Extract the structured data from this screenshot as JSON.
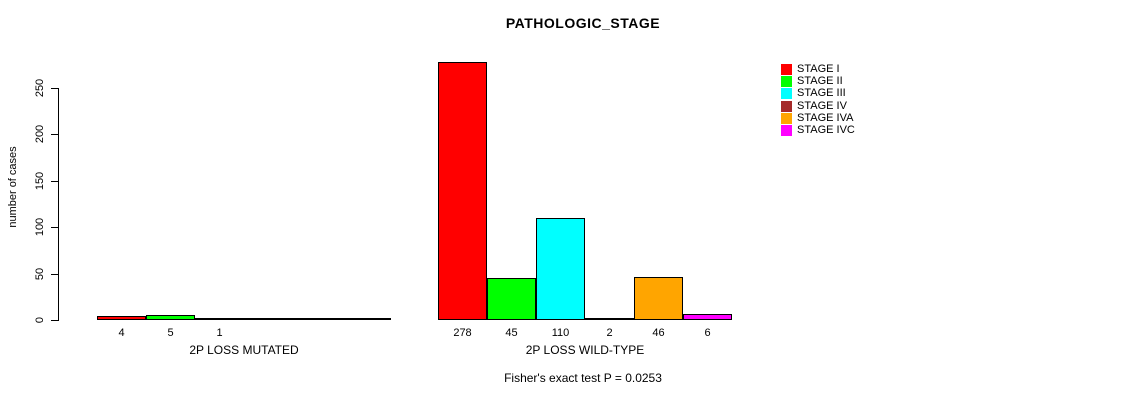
{
  "title": "PATHOLOGIC_STAGE",
  "chart_data": {
    "type": "bar",
    "title": "PATHOLOGIC_STAGE",
    "xlabel": "",
    "ylabel": "number of cases",
    "ylim": [
      0,
      280
    ],
    "yticks": [
      0,
      50,
      100,
      150,
      200,
      250
    ],
    "ytick_labels": [
      "0",
      "50",
      "100",
      "150",
      "200",
      "250"
    ],
    "grid": false,
    "legend_position": "right-outside",
    "series_names": [
      "STAGE I",
      "STAGE II",
      "STAGE III",
      "STAGE IV",
      "STAGE IVA",
      "STAGE IVC"
    ],
    "colors": [
      "#FF0000",
      "#00FF00",
      "#00FFFF",
      "#A52A2A",
      "#FFA500",
      "#FF00FF"
    ],
    "groups": [
      {
        "label": "2P LOSS MUTATED",
        "values": [
          4,
          5,
          1,
          0,
          0,
          0
        ],
        "bar_labels": [
          "4",
          "5",
          "1",
          "",
          "",
          ""
        ]
      },
      {
        "label": "2P LOSS WILD-TYPE",
        "values": [
          278,
          45,
          110,
          2,
          46,
          6
        ],
        "bar_labels": [
          "278",
          "45",
          "110",
          "2",
          "46",
          "6"
        ]
      }
    ],
    "annotation": "Fisher's exact test P = 0.0253"
  }
}
